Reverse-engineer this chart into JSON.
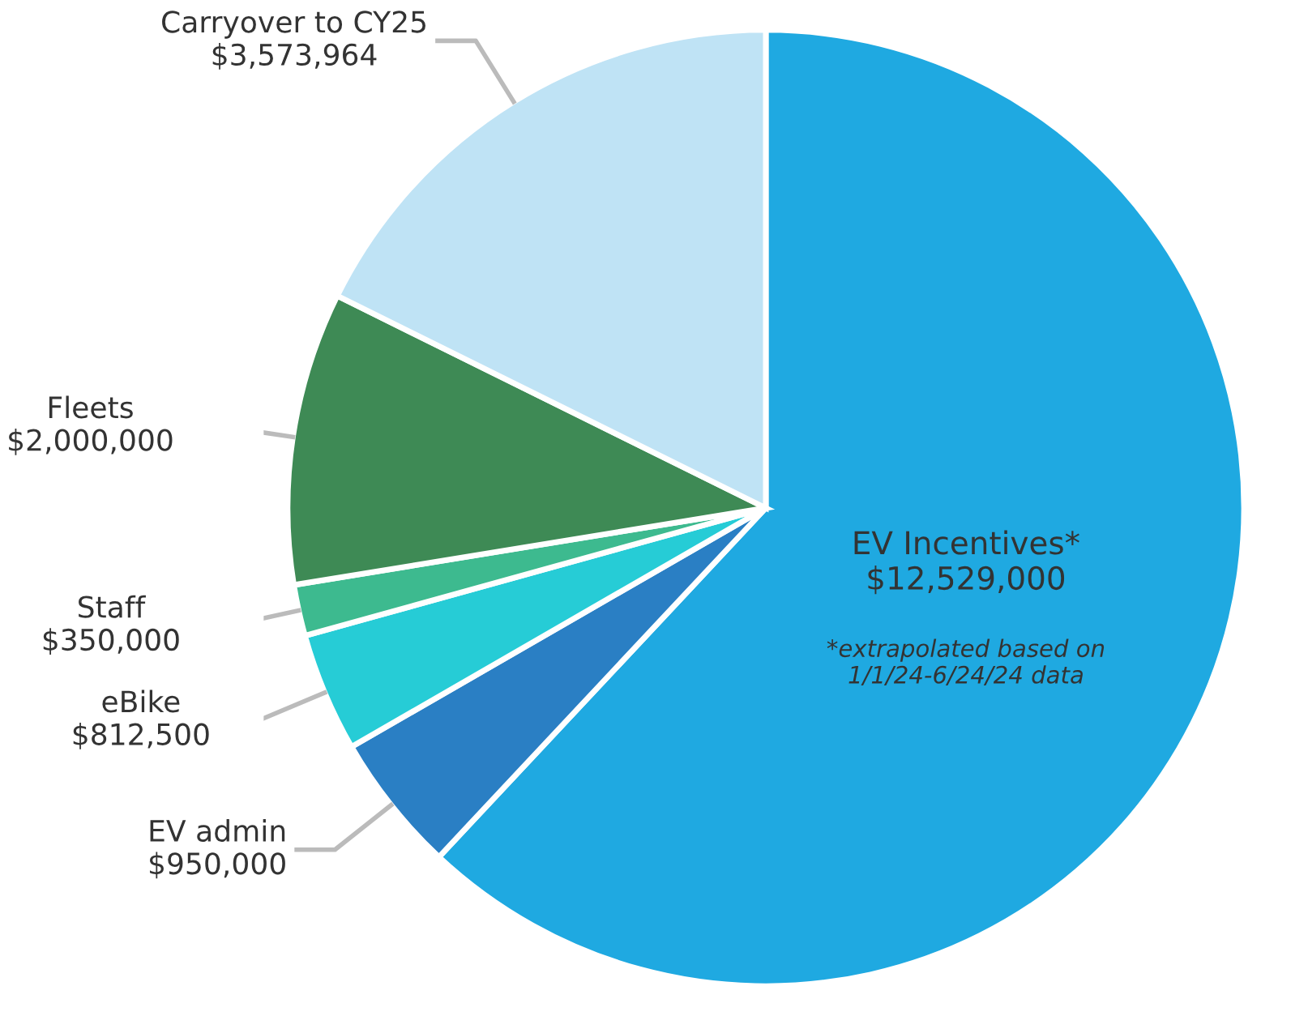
{
  "chart_data": {
    "type": "pie",
    "categories": [
      "EV Incentives*",
      "EV admin",
      "eBike",
      "Staff",
      "Fleets",
      "Carryover to CY25"
    ],
    "values": [
      12529000,
      950000,
      812500,
      350000,
      2000000,
      3573964
    ],
    "value_labels": [
      "$12,529,000",
      "$950,000",
      "$812,500",
      "$350,000",
      "$2,000,000",
      "$3,573,964"
    ],
    "colors": [
      "#1fa9e1",
      "#2a7fc4",
      "#26ccd6",
      "#3dba8f",
      "#3e8a55",
      "#bfe3f5"
    ],
    "annotations": [
      "*extrapolated based on\n1/1/24-6/24/24 data"
    ],
    "legend": false
  }
}
